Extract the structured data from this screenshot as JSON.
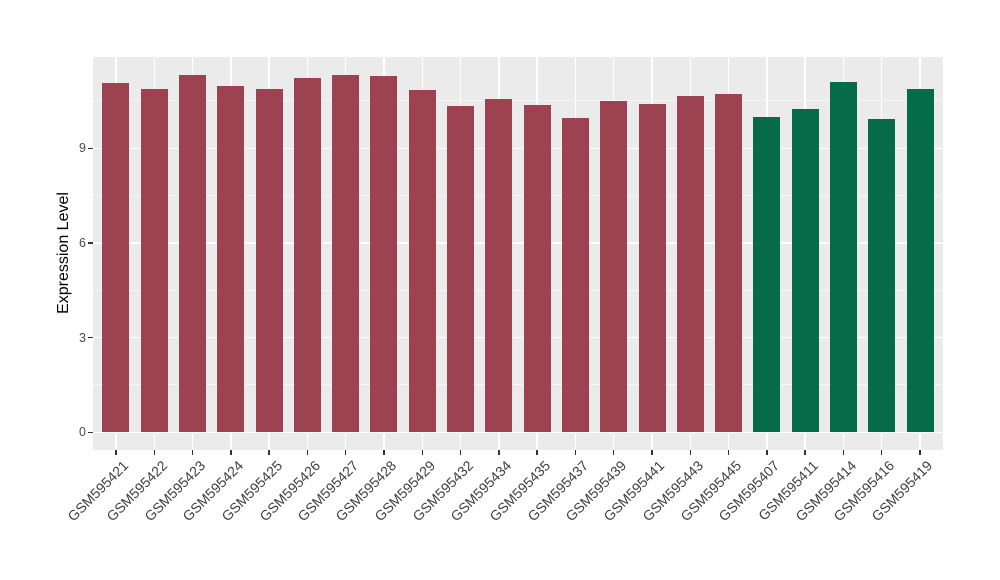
{
  "chart_data": {
    "type": "bar",
    "title": "",
    "xlabel": "",
    "ylabel": "Expression Level",
    "y_ticks": [
      0,
      3,
      6,
      9
    ],
    "y_minor_ticks": [
      1.5,
      4.5,
      7.5,
      10.5
    ],
    "ylim": [
      -0.6,
      11.9
    ],
    "grid": true,
    "legend_position": "none",
    "panel_background": "#EBEBEB",
    "grid_color": "#FFFFFF",
    "axis_text_color": "#4A4A4A",
    "axis_title_color": "#000000",
    "palette": {
      "maroon": "#9C4250",
      "green": "#056B49"
    },
    "categories": [
      "GSM595421",
      "GSM595422",
      "GSM595423",
      "GSM595424",
      "GSM595425",
      "GSM595426",
      "GSM595427",
      "GSM595428",
      "GSM595429",
      "GSM595432",
      "GSM595434",
      "GSM595435",
      "GSM595437",
      "GSM595439",
      "GSM595441",
      "GSM595443",
      "GSM595445",
      "GSM595407",
      "GSM595411",
      "GSM595414",
      "GSM595416",
      "GSM595419"
    ],
    "values": [
      11.07,
      10.89,
      11.32,
      10.96,
      10.89,
      11.22,
      11.33,
      11.3,
      10.86,
      10.33,
      10.55,
      10.38,
      9.97,
      10.5,
      10.41,
      10.66,
      10.73,
      9.98,
      10.23,
      11.09,
      9.93,
      10.87
    ],
    "bar_groups": [
      "maroon",
      "maroon",
      "maroon",
      "maroon",
      "maroon",
      "maroon",
      "maroon",
      "maroon",
      "maroon",
      "maroon",
      "maroon",
      "maroon",
      "maroon",
      "maroon",
      "maroon",
      "maroon",
      "maroon",
      "green",
      "green",
      "green",
      "green",
      "green"
    ]
  }
}
